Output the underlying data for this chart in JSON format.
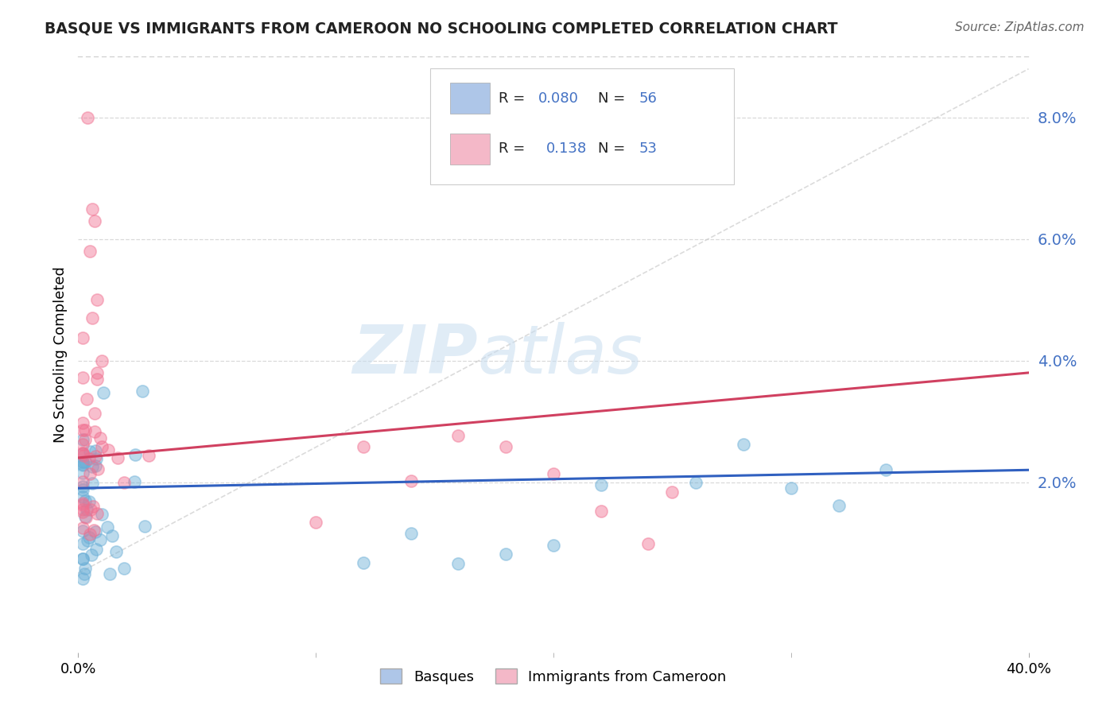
{
  "title": "BASQUE VS IMMIGRANTS FROM CAMEROON NO SCHOOLING COMPLETED CORRELATION CHART",
  "source": "Source: ZipAtlas.com",
  "ylabel": "No Schooling Completed",
  "yticks_labels": [
    "2.0%",
    "4.0%",
    "6.0%",
    "8.0%"
  ],
  "ytick_vals": [
    0.02,
    0.04,
    0.06,
    0.08
  ],
  "xlim": [
    0.0,
    0.4
  ],
  "ylim": [
    -0.008,
    0.09
  ],
  "legend_color1": "#aec6e8",
  "legend_color2": "#f4b8c8",
  "scatter_color1": "#6aaed6",
  "scatter_color2": "#f07090",
  "trendline_color1": "#3060c0",
  "trendline_color2": "#d04060",
  "diag_line_color": "#cccccc",
  "watermark_zip": "ZIP",
  "watermark_atlas": "atlas",
  "legend_bottom_label1": "Basques",
  "legend_bottom_label2": "Immigrants from Cameroon",
  "ytick_color": "#4472c4",
  "grid_color": "#d0d0d0",
  "title_color": "#222222",
  "source_color": "#666666"
}
